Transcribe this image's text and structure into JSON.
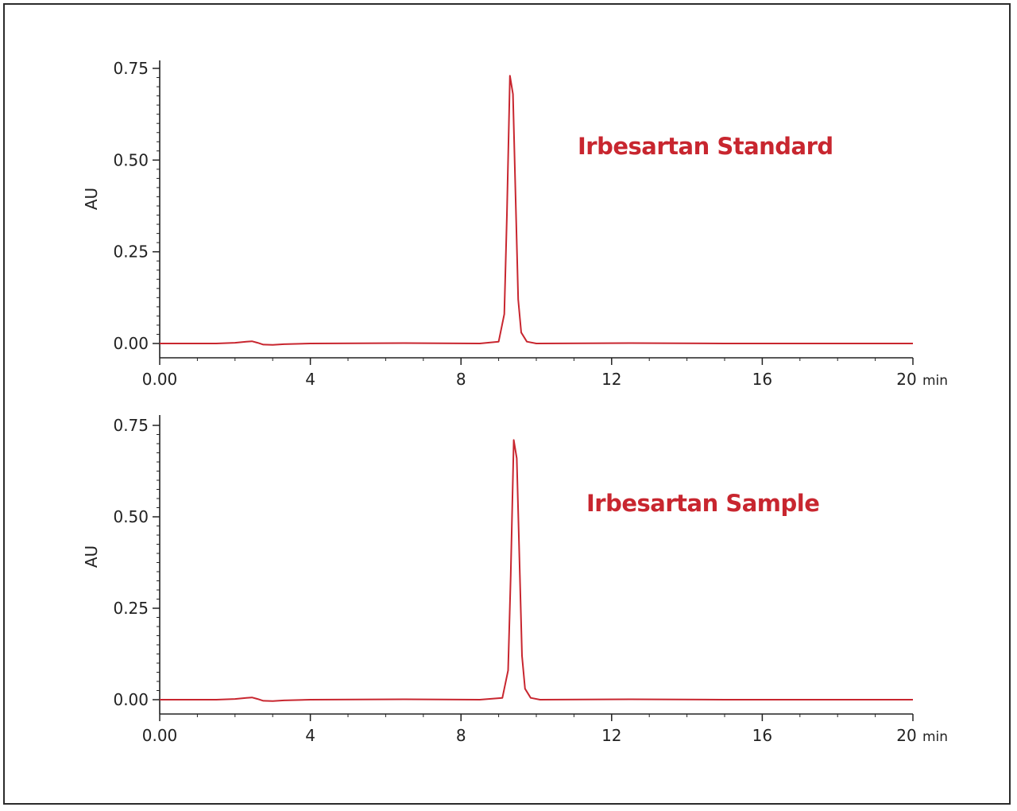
{
  "chart_data": [
    {
      "type": "line",
      "annotation": "Irbesartan Standard",
      "ylabel": "AU",
      "x_unit": "min",
      "xlim": [
        0,
        20
      ],
      "ylim": [
        0,
        0.75
      ],
      "x_ticks": [
        0,
        4,
        8,
        12,
        16,
        20
      ],
      "x_tick_labels": [
        "0.00",
        "4",
        "8",
        "12",
        "16",
        "20"
      ],
      "y_ticks": [
        0,
        0.25,
        0.5,
        0.75
      ],
      "y_tick_labels": [
        "0.00",
        "0.25",
        "0.50",
        "0.75"
      ],
      "color": "#c8262f",
      "series": [
        {
          "x": [
            0,
            1.5,
            2.0,
            2.3,
            2.45,
            2.6,
            2.75,
            3.0,
            3.3,
            4.0,
            6.5,
            8.5,
            9.0,
            9.15,
            9.22,
            9.3,
            9.38,
            9.45,
            9.52,
            9.6,
            9.75,
            10.0,
            12.5,
            15.0,
            20.0
          ],
          "y": [
            0,
            0,
            0.002,
            0.005,
            0.006,
            0.002,
            -0.003,
            -0.004,
            -0.002,
            0,
            0.001,
            0,
            0.005,
            0.08,
            0.35,
            0.73,
            0.68,
            0.4,
            0.12,
            0.03,
            0.005,
            0,
            0.001,
            0,
            0
          ]
        }
      ]
    },
    {
      "type": "line",
      "annotation": "Irbesartan Sample",
      "ylabel": "AU",
      "x_unit": "min",
      "xlim": [
        0,
        20
      ],
      "ylim": [
        0,
        0.75
      ],
      "x_ticks": [
        0,
        4,
        8,
        12,
        16,
        20
      ],
      "x_tick_labels": [
        "0.00",
        "4",
        "8",
        "12",
        "16",
        "20"
      ],
      "y_ticks": [
        0,
        0.25,
        0.5,
        0.75
      ],
      "y_tick_labels": [
        "0.00",
        "0.25",
        "0.50",
        "0.75"
      ],
      "color": "#c8262f",
      "series": [
        {
          "x": [
            0,
            1.5,
            2.0,
            2.3,
            2.45,
            2.6,
            2.75,
            3.0,
            3.3,
            4.0,
            6.5,
            8.5,
            9.1,
            9.25,
            9.32,
            9.4,
            9.48,
            9.55,
            9.62,
            9.7,
            9.85,
            10.1,
            12.5,
            15.0,
            20.0
          ],
          "y": [
            0,
            0,
            0.002,
            0.005,
            0.006,
            0.002,
            -0.003,
            -0.004,
            -0.002,
            0,
            0.001,
            0,
            0.005,
            0.08,
            0.34,
            0.71,
            0.66,
            0.39,
            0.12,
            0.03,
            0.005,
            0,
            0.001,
            0,
            0
          ]
        }
      ]
    }
  ]
}
